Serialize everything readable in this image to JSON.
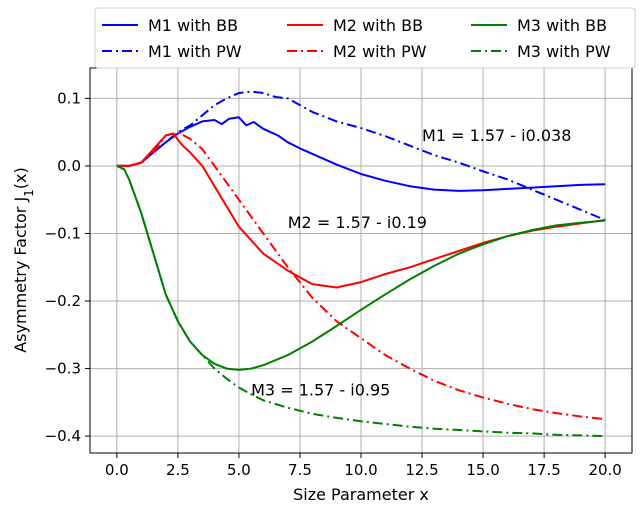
{
  "chart_data": {
    "type": "line",
    "title": "",
    "xlabel": "Size Parameter x",
    "ylabel": "Asymmetry Factor J",
    "ylabel_sub": "1",
    "ylabel_arg": "(x)",
    "xlim": [
      -1.1,
      21.1
    ],
    "ylim": [
      -0.425,
      0.145
    ],
    "xticks": [
      0.0,
      2.5,
      5.0,
      7.5,
      10.0,
      12.5,
      15.0,
      17.5,
      20.0
    ],
    "xtick_labels": [
      "0.0",
      "2.5",
      "5.0",
      "7.5",
      "10.0",
      "12.5",
      "15.0",
      "17.5",
      "20.0"
    ],
    "yticks": [
      0.1,
      0.0,
      -0.1,
      -0.2,
      -0.3,
      -0.4
    ],
    "ytick_labels": [
      "0.1",
      "0.0",
      "−0.1",
      "−0.2",
      "−0.3",
      "−0.4"
    ],
    "grid": true,
    "legend_position": "top-center",
    "series": [
      {
        "name": "M1 with BB",
        "color": "#0000ff",
        "dash": "solid",
        "points": [
          [
            0,
            0
          ],
          [
            0.5,
            0
          ],
          [
            1,
            0.005
          ],
          [
            1.5,
            0.02
          ],
          [
            2,
            0.035
          ],
          [
            2.5,
            0.048
          ],
          [
            3,
            0.058
          ],
          [
            3.5,
            0.066
          ],
          [
            4,
            0.068
          ],
          [
            4.3,
            0.062
          ],
          [
            4.6,
            0.07
          ],
          [
            5,
            0.072
          ],
          [
            5.3,
            0.06
          ],
          [
            5.6,
            0.065
          ],
          [
            6,
            0.055
          ],
          [
            6.3,
            0.05
          ],
          [
            6.6,
            0.045
          ],
          [
            7,
            0.035
          ],
          [
            7.5,
            0.026
          ],
          [
            8,
            0.018
          ],
          [
            9,
            0.002
          ],
          [
            10,
            -0.012
          ],
          [
            11,
            -0.022
          ],
          [
            12,
            -0.03
          ],
          [
            13,
            -0.035
          ],
          [
            14,
            -0.037
          ],
          [
            15,
            -0.036
          ],
          [
            16,
            -0.034
          ],
          [
            17,
            -0.032
          ],
          [
            18,
            -0.03
          ],
          [
            19,
            -0.028
          ],
          [
            20,
            -0.027
          ]
        ]
      },
      {
        "name": "M1 with PW",
        "color": "#0000ff",
        "dash": "dashdot",
        "points": [
          [
            0,
            0
          ],
          [
            0.5,
            0
          ],
          [
            1,
            0.005
          ],
          [
            1.5,
            0.02
          ],
          [
            2,
            0.035
          ],
          [
            2.5,
            0.05
          ],
          [
            3,
            0.06
          ],
          [
            3.5,
            0.075
          ],
          [
            4,
            0.09
          ],
          [
            4.5,
            0.1
          ],
          [
            5,
            0.108
          ],
          [
            5.5,
            0.11
          ],
          [
            6,
            0.108
          ],
          [
            6.5,
            0.102
          ],
          [
            7,
            0.1
          ],
          [
            7.5,
            0.09
          ],
          [
            8,
            0.08
          ],
          [
            9,
            0.066
          ],
          [
            10,
            0.056
          ],
          [
            11,
            0.044
          ],
          [
            12,
            0.03
          ],
          [
            13,
            0.016
          ],
          [
            14,
            0.005
          ],
          [
            15,
            -0.008
          ],
          [
            16,
            -0.02
          ],
          [
            17,
            -0.035
          ],
          [
            18,
            -0.05
          ],
          [
            19,
            -0.065
          ],
          [
            20,
            -0.08
          ]
        ]
      },
      {
        "name": "M2 with BB",
        "color": "#ff0000",
        "dash": "solid",
        "points": [
          [
            0,
            0
          ],
          [
            0.5,
            0
          ],
          [
            1,
            0.005
          ],
          [
            1.5,
            0.025
          ],
          [
            2,
            0.045
          ],
          [
            2.3,
            0.048
          ],
          [
            2.7,
            0.03
          ],
          [
            3,
            0.02
          ],
          [
            3.5,
            0.0
          ],
          [
            4,
            -0.03
          ],
          [
            4.5,
            -0.06
          ],
          [
            5,
            -0.09
          ],
          [
            5.5,
            -0.11
          ],
          [
            6,
            -0.13
          ],
          [
            7,
            -0.155
          ],
          [
            8,
            -0.175
          ],
          [
            9,
            -0.18
          ],
          [
            10,
            -0.172
          ],
          [
            11,
            -0.16
          ],
          [
            12,
            -0.15
          ],
          [
            13,
            -0.138
          ],
          [
            14,
            -0.126
          ],
          [
            15,
            -0.114
          ],
          [
            16,
            -0.104
          ],
          [
            17,
            -0.096
          ],
          [
            18,
            -0.09
          ],
          [
            19,
            -0.085
          ],
          [
            20,
            -0.08
          ]
        ]
      },
      {
        "name": "M2 with PW",
        "color": "#ff0000",
        "dash": "dashdot",
        "points": [
          [
            0,
            0
          ],
          [
            0.5,
            0
          ],
          [
            1,
            0.005
          ],
          [
            1.5,
            0.02
          ],
          [
            2,
            0.045
          ],
          [
            2.5,
            0.05
          ],
          [
            3,
            0.04
          ],
          [
            3.5,
            0.025
          ],
          [
            4,
            0.0
          ],
          [
            4.5,
            -0.025
          ],
          [
            5,
            -0.05
          ],
          [
            5.5,
            -0.075
          ],
          [
            6,
            -0.1
          ],
          [
            7,
            -0.15
          ],
          [
            8,
            -0.195
          ],
          [
            9,
            -0.23
          ],
          [
            10,
            -0.255
          ],
          [
            11,
            -0.28
          ],
          [
            12,
            -0.3
          ],
          [
            13,
            -0.318
          ],
          [
            14,
            -0.332
          ],
          [
            15,
            -0.343
          ],
          [
            16,
            -0.352
          ],
          [
            17,
            -0.36
          ],
          [
            18,
            -0.366
          ],
          [
            19,
            -0.371
          ],
          [
            20,
            -0.375
          ]
        ]
      },
      {
        "name": "M3 with BB",
        "color": "#008000",
        "dash": "solid",
        "points": [
          [
            0,
            0
          ],
          [
            0.3,
            -0.005
          ],
          [
            0.5,
            -0.02
          ],
          [
            1,
            -0.07
          ],
          [
            1.5,
            -0.13
          ],
          [
            2,
            -0.19
          ],
          [
            2.5,
            -0.23
          ],
          [
            3,
            -0.26
          ],
          [
            3.5,
            -0.28
          ],
          [
            4,
            -0.293
          ],
          [
            4.5,
            -0.3
          ],
          [
            5,
            -0.302
          ],
          [
            5.5,
            -0.3
          ],
          [
            6,
            -0.295
          ],
          [
            7,
            -0.28
          ],
          [
            8,
            -0.26
          ],
          [
            9,
            -0.237
          ],
          [
            10,
            -0.213
          ],
          [
            11,
            -0.19
          ],
          [
            12,
            -0.168
          ],
          [
            13,
            -0.148
          ],
          [
            14,
            -0.13
          ],
          [
            15,
            -0.116
          ],
          [
            16,
            -0.104
          ],
          [
            17,
            -0.095
          ],
          [
            18,
            -0.088
          ],
          [
            19,
            -0.084
          ],
          [
            20,
            -0.081
          ]
        ]
      },
      {
        "name": "M3 with PW",
        "color": "#008000",
        "dash": "dashdot",
        "points": [
          [
            0,
            0
          ],
          [
            0.3,
            -0.005
          ],
          [
            0.5,
            -0.02
          ],
          [
            1,
            -0.07
          ],
          [
            1.5,
            -0.13
          ],
          [
            2,
            -0.19
          ],
          [
            2.5,
            -0.23
          ],
          [
            3,
            -0.26
          ],
          [
            3.5,
            -0.28
          ],
          [
            4,
            -0.3
          ],
          [
            4.5,
            -0.315
          ],
          [
            5,
            -0.328
          ],
          [
            5.5,
            -0.338
          ],
          [
            6,
            -0.347
          ],
          [
            7,
            -0.358
          ],
          [
            8,
            -0.367
          ],
          [
            9,
            -0.373
          ],
          [
            10,
            -0.378
          ],
          [
            11,
            -0.382
          ],
          [
            12,
            -0.386
          ],
          [
            13,
            -0.389
          ],
          [
            14,
            -0.391
          ],
          [
            15,
            -0.393
          ],
          [
            16,
            -0.395
          ],
          [
            17,
            -0.396
          ],
          [
            18,
            -0.398
          ],
          [
            19,
            -0.399
          ],
          [
            20,
            -0.4
          ]
        ]
      }
    ],
    "annotations": [
      {
        "text": "M1 = 1.57 - i0.038",
        "x": 12.5,
        "y": 0.037
      },
      {
        "text": "M2 = 1.57 - i0.19",
        "x": 7.0,
        "y": -0.092
      },
      {
        "text": "M3 = 1.57 - i0.95",
        "x": 5.5,
        "y": -0.34
      }
    ]
  }
}
